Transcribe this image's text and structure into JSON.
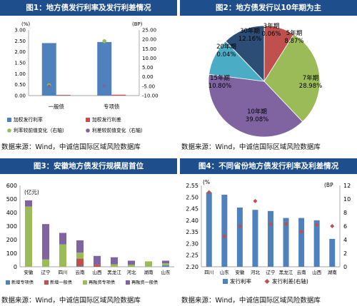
{
  "panels": {
    "p1": {
      "title": "图1：地方债发行利率及发行利差情况",
      "source": "数据来源：Wind，中诚信国际区域风险数据库"
    },
    "p2": {
      "title": "图2：地方债发行以10年期为主",
      "source": "数据来源：Wind，中诚信国际区域风险数据库"
    },
    "p3": {
      "title": "图3：安徽地方债发行规模居首位",
      "source": "数据来源：Wind，中诚信国际区域风险数据库"
    },
    "p4": {
      "title": "图4：不同省份地方债发行利率及利差情况",
      "source": "数据来源：Wind，中诚信国际区域风险数据库"
    }
  },
  "chart_data": [
    {
      "id": "chart1",
      "type": "bar",
      "categories": [
        "一般债",
        "专项债"
      ],
      "y_unit_left": "(%)",
      "y_unit_right": "(BP)",
      "ylim": [
        0,
        3
      ],
      "yticks": [
        "0.00",
        "0.50",
        "1.00",
        "1.50",
        "2.00",
        "2.50",
        "3.00"
      ],
      "y2lim": [
        -10,
        25
      ],
      "y2ticks": [
        "-10.00",
        "-5.00",
        "0.00",
        "5.00",
        "10.00",
        "15.00",
        "20.00",
        "25.00"
      ],
      "series": [
        {
          "name": "加权发行利率",
          "kind": "bar",
          "axis": "left",
          "color": "#4f81bd",
          "values": [
            2.4,
            2.45
          ]
        },
        {
          "name": "加权发行利差",
          "kind": "bar",
          "axis": "left",
          "color": "#c0504d",
          "values": [
            0.03,
            0.04
          ]
        },
        {
          "name": "利率较前值变化（右轴）",
          "kind": "point",
          "axis": "right",
          "color": "#9bbb59",
          "values": [
            -4.5,
            19.0
          ]
        },
        {
          "name": "利差较前值变化（右轴）",
          "kind": "point",
          "axis": "right",
          "color": "#8064a2",
          "values": [
            -5.0,
            -5.0
          ]
        }
      ]
    },
    {
      "id": "chart2",
      "type": "pie",
      "slices": [
        {
          "name": "3年期",
          "pct": "0.06%",
          "value": 0.06,
          "color": "#4f81bd"
        },
        {
          "name": "5年期",
          "pct": "8.87%",
          "value": 8.87,
          "color": "#c0504d"
        },
        {
          "name": "7年期",
          "pct": "28.98%",
          "value": 28.98,
          "color": "#9bbb59"
        },
        {
          "name": "10年期",
          "pct": "39.08%",
          "value": 39.08,
          "color": "#8064a2"
        },
        {
          "name": "15年期",
          "pct": "10.80%",
          "value": 10.8,
          "color": "#4bacc6"
        },
        {
          "name": "20年期",
          "pct": "0.04%",
          "value": 0.04,
          "color": "#f79646"
        },
        {
          "name": "30年期",
          "pct": "12.16%",
          "value": 12.16,
          "color": "#2c4d75"
        }
      ]
    },
    {
      "id": "chart3",
      "type": "bar",
      "stacked": true,
      "y_unit": "(亿元)",
      "ylim": [
        0,
        600
      ],
      "yticks": [
        "0",
        "100",
        "200",
        "300",
        "400",
        "500",
        "600"
      ],
      "categories": [
        "安徽",
        "辽宁",
        "四川",
        "云南",
        "山西",
        "黑龙江",
        "河北",
        "湖南",
        "山东"
      ],
      "series": [
        {
          "name": "新增专项债",
          "color": "#4f81bd",
          "values": [
            0,
            0,
            0,
            5,
            0,
            0,
            0,
            0,
            10
          ]
        },
        {
          "name": "新增一般债",
          "color": "#c0504d",
          "values": [
            0,
            0,
            0,
            55,
            15,
            0,
            0,
            0,
            0
          ]
        },
        {
          "name": "再融资专项债",
          "color": "#9bbb59",
          "values": [
            445,
            55,
            165,
            45,
            0,
            18,
            15,
            40,
            15
          ]
        },
        {
          "name": "再融资一般债",
          "color": "#8064a2",
          "values": [
            45,
            260,
            85,
            90,
            65,
            52,
            30,
            0,
            20
          ]
        }
      ]
    },
    {
      "id": "chart4",
      "type": "bar",
      "y_unit_left": "(%",
      "y_unit_right": "(BP",
      "ylim": [
        2.2,
        2.55
      ],
      "yticks": [
        "2.20",
        "2.25",
        "2.30",
        "2.35",
        "2.40",
        "2.45",
        "2.50",
        "2.55"
      ],
      "y2lim": [
        0,
        12
      ],
      "y2ticks": [
        "0",
        "2",
        "4",
        "6",
        "8",
        "10",
        "12"
      ],
      "categories": [
        "四川",
        "山东",
        "安徽",
        "河北",
        "辽宁",
        "黑龙江",
        "云南",
        "山西",
        "湖南"
      ],
      "series": [
        {
          "name": "发行利率",
          "kind": "bar",
          "axis": "left",
          "color": "#4f81bd",
          "values": [
            2.52,
            2.51,
            2.455,
            2.445,
            2.44,
            2.41,
            2.41,
            2.4,
            2.32
          ]
        },
        {
          "name": "发行利差(右轴)",
          "kind": "point",
          "axis": "right",
          "color": "#c0504d",
          "values": [
            11.0,
            4.5,
            6.0,
            9.7,
            6.3,
            6.3,
            5.2,
            6.2,
            6.0
          ]
        }
      ]
    }
  ]
}
